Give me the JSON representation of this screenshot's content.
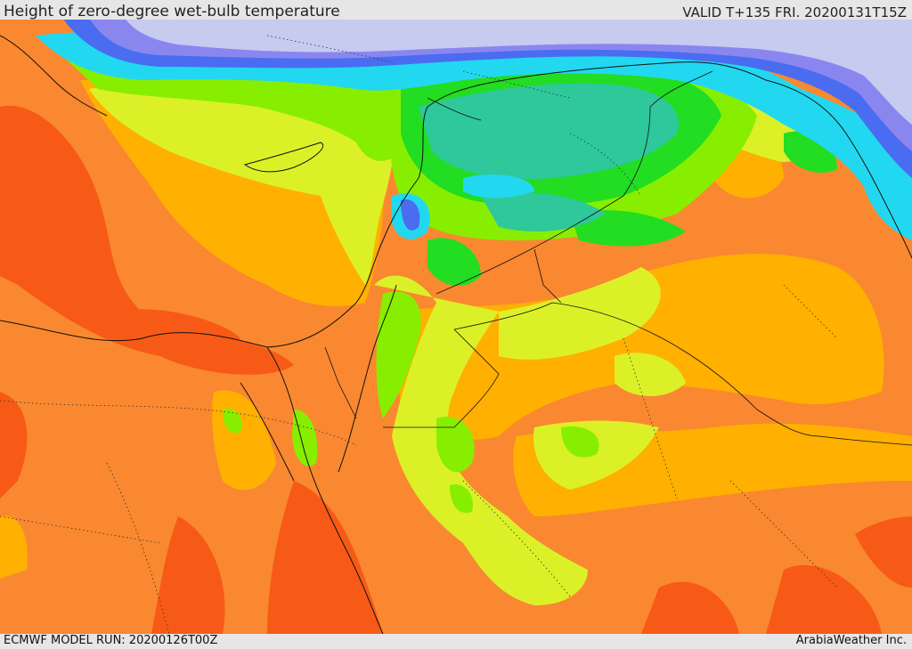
{
  "header": {
    "title": "Height of zero-degree wet-bulb temperature",
    "valid": "VALID T+135 FRI. 20200131T15Z"
  },
  "footer": {
    "model_run": "ECMWF MODEL RUN: 20200126T00Z",
    "credit": "ArabiaWeather Inc."
  },
  "palette": {
    "cold_lavender": "#c6cbef",
    "blue_violet": "#8a86f0",
    "blue": "#4a6cf0",
    "cyan": "#22d8f0",
    "teal": "#2ec89a",
    "green": "#22dd22",
    "lime": "#88ee00",
    "yellow_green": "#dcf028",
    "yellow": "#ffd400",
    "orange": "#ffb000",
    "dark_orange": "#f98830",
    "red_orange": "#f75a16"
  }
}
